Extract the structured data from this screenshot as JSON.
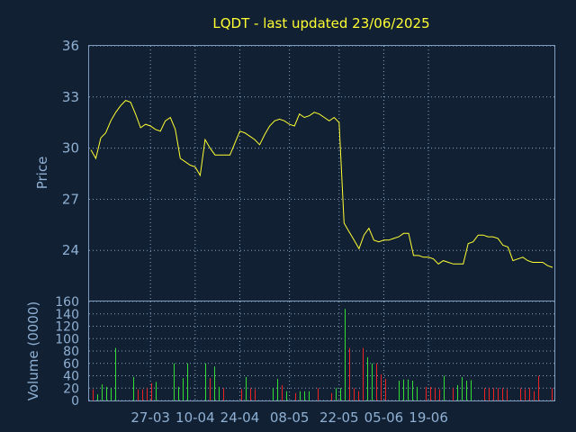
{
  "chart_data": [
    {
      "type": "line",
      "title": "LQDT - last updated 23/06/2025",
      "ylabel": "Price",
      "ylim": [
        21,
        36
      ],
      "yticks": [
        24,
        27,
        30,
        33,
        36
      ],
      "xticks": [
        {
          "label": "27-03",
          "index": 12
        },
        {
          "label": "10-04",
          "index": 21
        },
        {
          "label": "24-04",
          "index": 30
        },
        {
          "label": "08-05",
          "index": 40
        },
        {
          "label": "22-05",
          "index": 50
        },
        {
          "label": "05-06",
          "index": 59
        },
        {
          "label": "19-06",
          "index": 68
        }
      ],
      "grid": true,
      "series": [
        {
          "color": "#ffff33",
          "values": [
            29.9,
            29.4,
            30.6,
            30.9,
            31.6,
            32.1,
            32.5,
            32.8,
            32.7,
            32.0,
            31.2,
            31.4,
            31.3,
            31.1,
            31.0,
            31.6,
            31.8,
            31.1,
            29.4,
            29.2,
            29.0,
            28.9,
            28.4,
            30.5,
            30.0,
            29.6,
            29.6,
            29.6,
            29.6,
            30.3,
            31.0,
            30.9,
            30.7,
            30.5,
            30.2,
            30.8,
            31.3,
            31.6,
            31.7,
            31.6,
            31.4,
            31.3,
            32.0,
            31.8,
            31.9,
            32.1,
            32.0,
            31.8,
            31.6,
            31.8,
            31.5,
            25.6,
            25.1,
            24.6,
            24.1,
            24.9,
            25.3,
            24.6,
            24.5,
            24.6,
            24.6,
            24.7,
            24.8,
            25.0,
            25.0,
            23.7,
            23.7,
            23.6,
            23.6,
            23.5,
            23.2,
            23.4,
            23.3,
            23.2,
            23.2,
            23.2,
            24.4,
            24.5,
            24.9,
            24.9,
            24.8,
            24.8,
            24.7,
            24.3,
            24.2,
            23.4,
            23.5,
            23.6,
            23.4,
            23.3,
            23.3,
            23.3,
            23.1,
            23.0
          ]
        }
      ]
    },
    {
      "type": "bar",
      "ylabel": "Volume (0000)",
      "ylim": [
        0,
        160
      ],
      "yticks": [
        0,
        20,
        40,
        60,
        80,
        100,
        120,
        140,
        160
      ],
      "grid": true,
      "series": [
        {
          "name": "volume",
          "values": [
            18,
            10,
            26,
            22,
            20,
            85,
            0,
            0,
            0,
            38,
            18,
            18,
            20,
            28,
            30,
            0,
            0,
            0,
            60,
            22,
            36,
            60,
            0,
            0,
            0,
            60,
            36,
            55,
            22,
            20,
            0,
            0,
            0,
            18,
            38,
            20,
            18,
            0,
            0,
            0,
            20,
            35,
            25,
            15,
            0,
            12,
            15,
            15,
            15,
            0,
            20,
            0,
            0,
            12,
            20,
            20,
            148,
            85,
            20,
            15,
            85,
            70,
            60,
            60,
            42,
            35,
            0,
            0,
            32,
            34,
            34,
            32,
            22,
            0,
            22,
            22,
            20,
            18,
            40,
            0,
            20,
            25,
            38,
            32,
            33,
            0,
            0,
            20,
            20,
            20,
            20,
            20,
            18,
            0,
            0,
            20,
            18,
            20,
            15,
            40,
            0,
            0,
            20
          ],
          "colors": [
            "#ee2222",
            "#33dd33",
            "#33dd33",
            "#33dd33",
            "#33dd33",
            "#33dd33",
            "#ee2222",
            "#ee2222",
            "#ee2222",
            "#33dd33",
            "#ee2222",
            "#ee2222",
            "#ee2222",
            "#ee2222",
            "#33dd33",
            "#33dd33",
            "#33dd33",
            "#33dd33",
            "#33dd33",
            "#33dd33",
            "#33dd33",
            "#33dd33",
            "#33dd33",
            "#33dd33",
            "#33dd33",
            "#33dd33",
            "#ee2222",
            "#33dd33",
            "#33dd33",
            "#ee2222",
            "#ee2222",
            "#ee2222",
            "#ee2222",
            "#ee2222",
            "#33dd33",
            "#ee2222",
            "#ee2222",
            "#33dd33",
            "#33dd33",
            "#33dd33",
            "#33dd33",
            "#33dd33",
            "#ee2222",
            "#33dd33",
            "#33dd33",
            "#ee2222",
            "#33dd33",
            "#33dd33",
            "#33dd33",
            "#33dd33",
            "#ee2222",
            "#ee2222",
            "#ee2222",
            "#ee2222",
            "#33dd33",
            "#33dd33",
            "#33dd33",
            "#ee2222",
            "#ee2222",
            "#ee2222",
            "#ee2222",
            "#33dd33",
            "#33dd33",
            "#ee2222",
            "#ee2222",
            "#ee2222",
            "#ee2222",
            "#ee2222",
            "#33dd33",
            "#33dd33",
            "#33dd33",
            "#33dd33",
            "#33dd33",
            "#33dd33",
            "#ee2222",
            "#ee2222",
            "#ee2222",
            "#ee2222",
            "#33dd33",
            "#33dd33",
            "#ee2222",
            "#33dd33",
            "#33dd33",
            "#33dd33",
            "#33dd33",
            "#33dd33",
            "#33dd33",
            "#ee2222",
            "#ee2222",
            "#ee2222",
            "#ee2222",
            "#ee2222",
            "#ee2222",
            "#ee2222",
            "#ee2222",
            "#ee2222",
            "#ee2222",
            "#ee2222",
            "#ee2222",
            "#ee2222",
            "#ee2222",
            "#ee2222",
            "#ee2222"
          ]
        }
      ]
    }
  ]
}
